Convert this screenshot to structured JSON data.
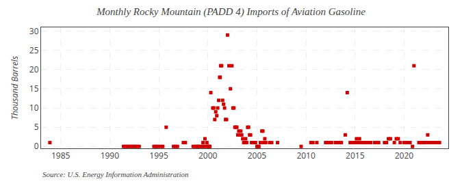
{
  "chart_data": {
    "type": "scatter",
    "title": "Monthly Rocky Mountain (PADD 4) Imports of Aviation Gasoline",
    "ylabel": "Thousand Barrels",
    "annotations": [
      "Source: U.S. Energy Information Administration"
    ],
    "color": "#cc0000",
    "marker": "square",
    "grid": true,
    "xlim": [
      1983.0,
      2024.5
    ],
    "ylim": [
      -0.5,
      31
    ],
    "xticks": [
      1985,
      1990,
      1995,
      2000,
      2005,
      2010,
      2015,
      2020
    ],
    "yticks": [
      0,
      5,
      10,
      15,
      20,
      25,
      30
    ],
    "x": [
      1983.9,
      1991.4,
      1991.6,
      1991.8,
      1992.0,
      1992.2,
      1992.4,
      1992.6,
      1992.8,
      1993.0,
      1994.5,
      1994.7,
      1994.9,
      1995.2,
      1995.4,
      1995.75,
      1996.5,
      1996.7,
      1996.9,
      1997.5,
      1997.7,
      1998.5,
      1998.7,
      1998.9,
      1999.0,
      1999.2,
      1999.4,
      1999.6,
      1999.8,
      1999.5,
      1999.7,
      1999.9,
      2000.0,
      2000.1,
      2000.2,
      2000.3,
      2000.5,
      2000.6,
      2000.7,
      2000.8,
      2000.9,
      2001.0,
      2001.1,
      2001.2,
      2001.25,
      2001.3,
      2001.4,
      2001.5,
      2001.6,
      2001.7,
      2001.8,
      2001.9,
      2002.0,
      2002.15,
      2002.3,
      2002.45,
      2002.55,
      2002.65,
      2002.75,
      2002.85,
      2002.95,
      2003.05,
      2003.15,
      2003.25,
      2003.35,
      2003.45,
      2003.55,
      2003.65,
      2003.75,
      2003.85,
      2003.95,
      2004.05,
      2004.15,
      2004.25,
      2004.35,
      2004.45,
      2004.55,
      2004.65,
      2004.75,
      2004.85,
      2005.0,
      2005.1,
      2005.2,
      2005.35,
      2005.5,
      2005.6,
      2005.7,
      2005.8,
      2005.9,
      2006.3,
      2006.5,
      2007.1,
      2009.5,
      2010.5,
      2010.7,
      2011.1,
      2012.0,
      2012.2,
      2012.4,
      2012.6,
      2013.0,
      2013.2,
      2013.4,
      2013.6,
      2014.0,
      2014.2,
      2014.5,
      2014.7,
      2014.9,
      2015.0,
      2015.15,
      2015.3,
      2015.45,
      2015.6,
      2015.75,
      2015.9,
      2016.0,
      2016.2,
      2016.4,
      2016.6,
      2017.0,
      2017.2,
      2017.4,
      2018.0,
      2018.2,
      2018.4,
      2018.6,
      2019.0,
      2019.2,
      2019.4,
      2019.6,
      2020.0,
      2020.2,
      2020.4,
      2020.6,
      2020.85,
      2021.0,
      2021.5,
      2021.65,
      2021.8,
      2021.95,
      2022.1,
      2022.25,
      2022.4,
      2022.55,
      2022.7,
      2023.0,
      2023.2,
      2023.4,
      2023.6
    ],
    "values": [
      1,
      0,
      0,
      0,
      0,
      0,
      0,
      0,
      0,
      0,
      0,
      0,
      0,
      0,
      0,
      5,
      0,
      0,
      0,
      1,
      1,
      0,
      0,
      0,
      0,
      0,
      0,
      0,
      0,
      1,
      2,
      1,
      0,
      0,
      0,
      14,
      10,
      10,
      7,
      9,
      8,
      10,
      12,
      18,
      18,
      21,
      21,
      12,
      11,
      10,
      7,
      7,
      29,
      21,
      15,
      21,
      10,
      10,
      5,
      5,
      5,
      3,
      4,
      3,
      4,
      3,
      2,
      1,
      1,
      2,
      1,
      5,
      5,
      3,
      3,
      1,
      1,
      1,
      1,
      1,
      0,
      0,
      0,
      1,
      4,
      4,
      1,
      2,
      1,
      1,
      1,
      1,
      0,
      1,
      1,
      1,
      1,
      1,
      1,
      1,
      1,
      1,
      1,
      1,
      3,
      14,
      1,
      1,
      1,
      1,
      2,
      1,
      2,
      1,
      1,
      1,
      1,
      1,
      1,
      1,
      1,
      1,
      1,
      1,
      1,
      2,
      2,
      1,
      2,
      2,
      1,
      1,
      1,
      1,
      1,
      0,
      21,
      1,
      1,
      1,
      1,
      1,
      1,
      3,
      1,
      1,
      1,
      1,
      1,
      1
    ]
  }
}
